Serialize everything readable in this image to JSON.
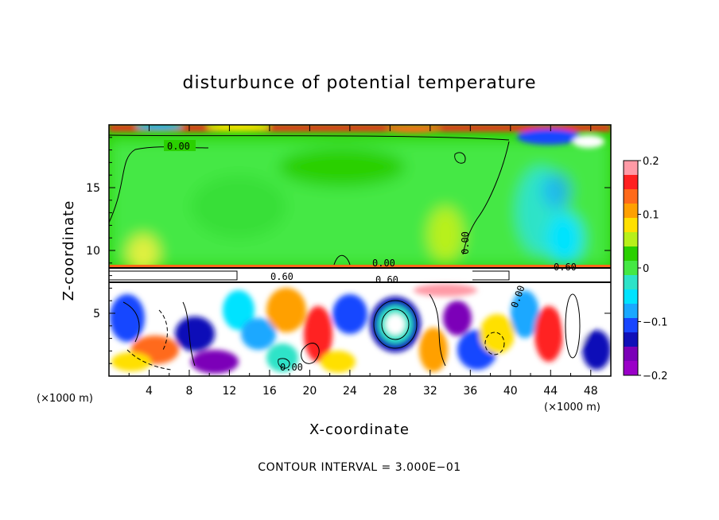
{
  "chart_data": {
    "type": "heatmap",
    "title": "disturbunce of potential temperature",
    "xlabel": "X-coordinate",
    "ylabel": "Z-coordinate",
    "x_unit_label": "(×1000 m)",
    "x_unit_label_right": "(×1000 m)",
    "xlim": [
      0,
      50
    ],
    "ylim": [
      0,
      20
    ],
    "x_ticks": [
      4,
      8,
      12,
      16,
      20,
      24,
      28,
      32,
      36,
      40,
      44,
      48
    ],
    "x_tick_labels": [
      "4",
      "8",
      "12",
      "16",
      "20",
      "24",
      "28",
      "32",
      "36",
      "40",
      "44",
      "48"
    ],
    "y_ticks": [
      5,
      10,
      15
    ],
    "y_tick_labels": [
      "5",
      "10",
      "15"
    ],
    "colorbar": {
      "min": -0.2,
      "max": 0.2,
      "tick_values": [
        0.2,
        0.1,
        0,
        -0.1,
        -0.2
      ],
      "tick_labels": [
        "0.2",
        "0.1",
        "0",
        "−0.1",
        "−0.2"
      ],
      "colors": [
        "#ff9aa6",
        "#ff2020",
        "#ff6a1a",
        "#ffa000",
        "#ffe000",
        "#b8f01a",
        "#2ad000",
        "#44e844",
        "#2de3c8",
        "#00e3ff",
        "#1aa8ff",
        "#1846ff",
        "#1010b8",
        "#7b00b8",
        "#9a00c8"
      ]
    },
    "contour_labels": [
      {
        "text": "0.00",
        "x": 7.2,
        "y": 18.2
      },
      {
        "text": "0.00",
        "x": 35.4,
        "y": 10.5,
        "rotate": -90
      },
      {
        "text": "0.00",
        "x": 28.1,
        "y": 9.0
      },
      {
        "text": "0.60",
        "x": 28.1,
        "y": 7.6
      },
      {
        "text": "0.60",
        "x": 45.5,
        "y": 8.6
      },
      {
        "text": "0.60",
        "x": 17.2,
        "y": 8.0
      },
      {
        "text": "0.00",
        "x": 40.6,
        "y": 6.2,
        "rotate": -70
      },
      {
        "text": "0.00",
        "x": 18.0,
        "y": 0.8
      }
    ],
    "contour_interval_text": "CONTOUR INTERVAL = 3.000E−01",
    "fields": {
      "upper_layer": "near-zero disturbance (≈0 to 0.02) above z≈9, negative pocket (≈−0.12) near x≈45, z≈9–13",
      "lower_layer": "strong turbulent eddies below z≈8 with values exceeding ±0.2",
      "interface": "sharp layer near z≈8 to 9"
    }
  }
}
